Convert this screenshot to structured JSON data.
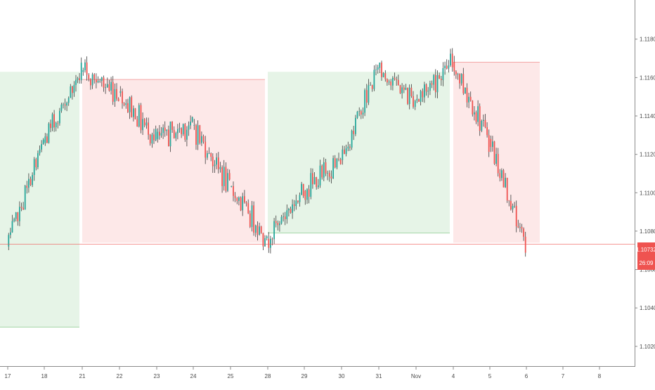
{
  "chart_data": {
    "type": "candlestick",
    "y_ticks": [
      "1.11800",
      "1.11600",
      "1.11400",
      "1.11200",
      "1.11000",
      "1.10800",
      "1.10600",
      "1.10400",
      "1.10200"
    ],
    "y_tick_values": [
      1.118,
      1.116,
      1.114,
      1.112,
      1.11,
      1.108,
      1.106,
      1.104,
      1.102
    ],
    "x_ticks": [
      "17",
      "18",
      "21",
      "22",
      "23",
      "24",
      "25",
      "28",
      "29",
      "30",
      "31",
      "Nov",
      "4",
      "5",
      "6",
      "7",
      "8"
    ],
    "ylim": [
      1.1013,
      1.1196
    ],
    "price_line": {
      "value": 1.10732,
      "label": "1.10732",
      "countdown": "26:09",
      "color": "#ef5350"
    },
    "colors": {
      "up": "#26a69a",
      "down": "#ef5350",
      "long_zone": "#e6f4e7",
      "short_zone": "#fde8e8",
      "axis_text": "#4a4a4a",
      "axis_line": "#8a8a8a"
    },
    "zones": [
      {
        "kind": "long",
        "start_tick": "17",
        "end_tick": "21",
        "top": 1.1163,
        "bottom": 1.103
      },
      {
        "kind": "short",
        "start_tick": "21",
        "end_tick": "28",
        "top": 1.1159,
        "bottom": 1.1074
      },
      {
        "kind": "long",
        "start_tick": "28",
        "end_tick": "4",
        "top": 1.1163,
        "bottom": 1.1079
      },
      {
        "kind": "short",
        "start_tick": "4",
        "end_tick": "6",
        "top": 1.1168,
        "bottom": 1.1074
      }
    ],
    "path_segments": [
      {
        "start_tick": "17",
        "end_tick": "18",
        "start": 1.1072,
        "end": 1.1126
      },
      {
        "start_tick": "18",
        "end_tick": "21",
        "start": 1.1126,
        "end": 1.1163
      },
      {
        "start_tick": "21",
        "end_tick": "22",
        "start": 1.1163,
        "end": 1.1152
      },
      {
        "start_tick": "22",
        "end_tick": "23",
        "start": 1.1152,
        "end": 1.1128
      },
      {
        "start_tick": "23",
        "end_tick": "24",
        "start": 1.1128,
        "end": 1.1135
      },
      {
        "start_tick": "24",
        "end_tick": "25",
        "start": 1.1135,
        "end": 1.1103
      },
      {
        "start_tick": "25",
        "end_tick": "28",
        "start": 1.1103,
        "end": 1.1076
      },
      {
        "start_tick": "28",
        "end_tick": "29",
        "start": 1.1076,
        "end": 1.1101
      },
      {
        "start_tick": "29",
        "end_tick": "30",
        "start": 1.1101,
        "end": 1.1117
      },
      {
        "start_tick": "30",
        "end_tick": "31",
        "start": 1.1117,
        "end": 1.1165
      },
      {
        "start_tick": "31",
        "end_tick": "Nov",
        "start": 1.1165,
        "end": 1.1148
      },
      {
        "start_tick": "Nov",
        "end_tick": "4",
        "start": 1.1148,
        "end": 1.1168
      },
      {
        "start_tick": "4",
        "end_tick": "5",
        "start": 1.1168,
        "end": 1.1128
      },
      {
        "start_tick": "5",
        "end_tick": "6",
        "start": 1.1128,
        "end": 1.1072
      }
    ]
  }
}
